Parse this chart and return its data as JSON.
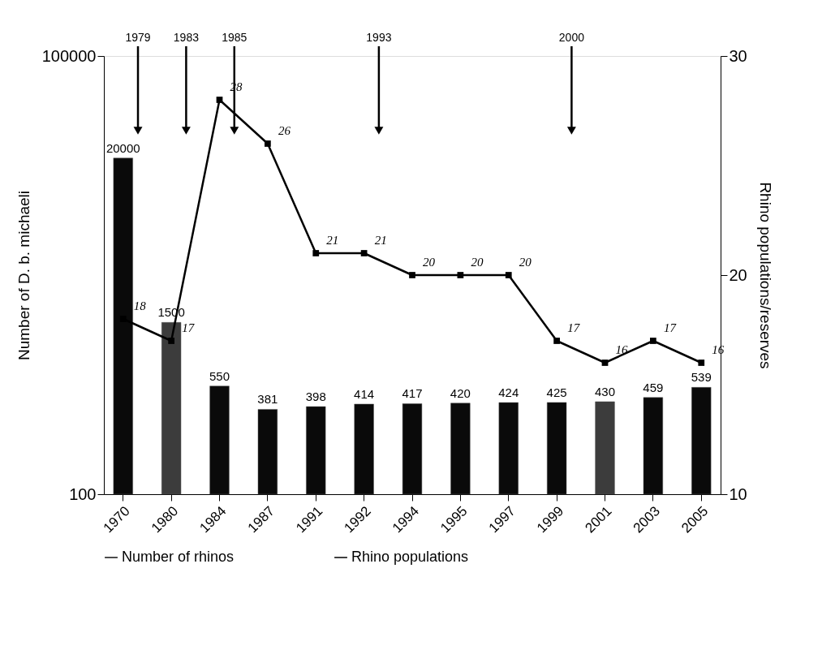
{
  "chart_data": {
    "type": "bar",
    "categories": [
      "1970",
      "1980",
      "1984",
      "1987",
      "1991",
      "1992",
      "1994",
      "1995",
      "1997",
      "1999",
      "2001",
      "2003",
      "2005"
    ],
    "series": [
      {
        "name": "Number of rhinos",
        "color": "#111111",
        "colors": [
          "#0a0a0a",
          "#3c3c3c",
          "#0a0a0a",
          "#0a0a0a",
          "#0a0a0a",
          "#0a0a0a",
          "#0a0a0a",
          "#0a0a0a",
          "#0a0a0a",
          "#0a0a0a",
          "#3c3c3c",
          "#0a0a0a",
          "#0a0a0a"
        ],
        "values": [
          20000,
          1500,
          550,
          381,
          398,
          414,
          417,
          420,
          424,
          425,
          430,
          459,
          539
        ]
      },
      {
        "name": "Rhino populations",
        "type": "line",
        "axis": "y2",
        "color": "#000000",
        "marker": "square",
        "values": [
          18,
          17,
          28,
          26,
          21,
          21,
          20,
          20,
          20,
          17,
          16,
          17,
          16
        ]
      }
    ],
    "ylabel": "Number of D. b. michaeli",
    "y2label": "Rhino populations/reserves",
    "ylim": [
      100,
      100000
    ],
    "yticks": [
      100,
      {
        "value": 100000,
        "label": "100000"
      }
    ],
    "log": "y",
    "y2lim": [
      10,
      30
    ],
    "y2ticks": [
      10,
      20,
      30
    ],
    "annotations": [
      "1979",
      "1983",
      "1985",
      "1993",
      "2000"
    ],
    "data_labels": true,
    "grid": false,
    "legend": "bottom",
    "line_style": "solid"
  }
}
